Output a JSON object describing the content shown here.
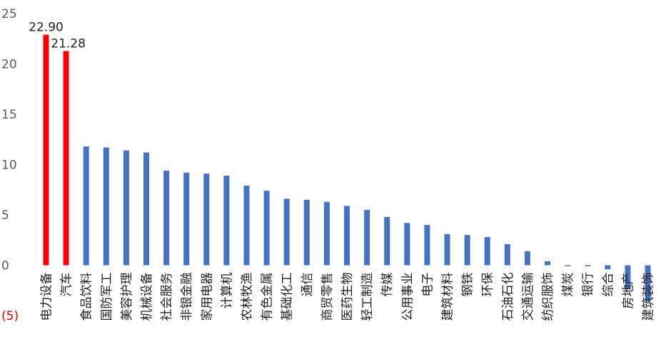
{
  "chart_data": {
    "type": "bar",
    "title": "",
    "xlabel": "",
    "ylabel": "",
    "ylim": [
      -5,
      25
    ],
    "y_ticks": [
      {
        "value": 25,
        "label": "25"
      },
      {
        "value": 20,
        "label": "20"
      },
      {
        "value": 15,
        "label": "15"
      },
      {
        "value": 10,
        "label": "10"
      },
      {
        "value": 5,
        "label": "5"
      },
      {
        "value": 0,
        "label": "0"
      },
      {
        "value": -5,
        "label": "(5)"
      }
    ],
    "grid": false,
    "legend": "none",
    "colors": {
      "highlight": "#ff0000",
      "default": "#4472c4",
      "negative_tick": "#e00000"
    },
    "categories": [
      "电力设备",
      "汽车",
      "食品饮料",
      "国防军工",
      "美容护理",
      "机械设备",
      "社会服务",
      "非银金融",
      "家用电器",
      "计算机",
      "农林牧渔",
      "有色金属",
      "基础化工",
      "通信",
      "商贸零售",
      "医药生物",
      "轻工制造",
      "传媒",
      "公用事业",
      "电子",
      "建筑材料",
      "钢铁",
      "环保",
      "石油石化",
      "交通运输",
      "纺织服饰",
      "煤炭",
      "银行",
      "综合",
      "房地产",
      "建筑装饰"
    ],
    "values": [
      22.9,
      21.28,
      11.8,
      11.7,
      11.4,
      11.2,
      9.4,
      9.2,
      9.1,
      8.9,
      7.9,
      7.4,
      6.6,
      6.5,
      6.3,
      5.9,
      5.5,
      4.8,
      4.2,
      4.0,
      3.1,
      3.0,
      2.8,
      2.1,
      1.4,
      0.4,
      -0.1,
      -0.1,
      -0.4,
      -2.4,
      -3.6
    ],
    "highlight": [
      true,
      true,
      false,
      false,
      false,
      false,
      false,
      false,
      false,
      false,
      false,
      false,
      false,
      false,
      false,
      false,
      false,
      false,
      false,
      false,
      false,
      false,
      false,
      false,
      false,
      false,
      false,
      false,
      false,
      false,
      false
    ],
    "data_labels": [
      "22.90",
      "21.28",
      "",
      "",
      "",
      "",
      "",
      "",
      "",
      "",
      "",
      "",
      "",
      "",
      "",
      "",
      "",
      "",
      "",
      "",
      "",
      "",
      "",
      "",
      "",
      "",
      "",
      "",
      "",
      "",
      ""
    ]
  }
}
